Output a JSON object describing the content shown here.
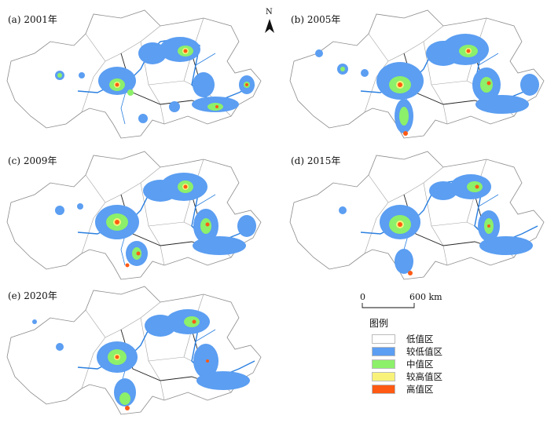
{
  "panels": [
    {
      "label": "(a) 2001年"
    },
    {
      "label": "(b) 2005年"
    },
    {
      "label": "(c) 2009年"
    },
    {
      "label": "(d) 2015年"
    },
    {
      "label": "(e) 2020年"
    }
  ],
  "north_arrow": {
    "letter": "N"
  },
  "scale_bar": {
    "start_label": "0",
    "end_label": "600 km"
  },
  "legend": {
    "title": "图例",
    "items": [
      {
        "label": "低值区",
        "color": "#ffffff"
      },
      {
        "label": "较低值区",
        "color": "#5b9ef2"
      },
      {
        "label": "中值区",
        "color": "#8cf06a"
      },
      {
        "label": "较高值区",
        "color": "#f8f27a"
      },
      {
        "label": "高值区",
        "color": "#ff5a14"
      }
    ]
  }
}
